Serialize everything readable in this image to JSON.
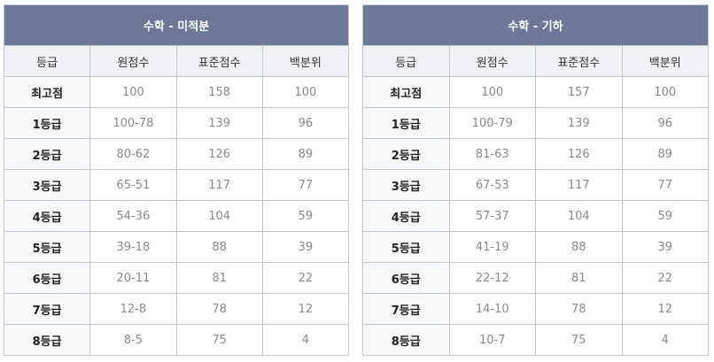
{
  "tables": [
    {
      "title": "수학 - 미적분",
      "headers": [
        "등급",
        "원점수",
        "표준점수",
        "백분위"
      ],
      "rows": [
        [
          "최고점",
          "100",
          "158",
          "100"
        ],
        [
          "1등급",
          "100-78",
          "139",
          "96"
        ],
        [
          "2등급",
          "80-62",
          "126",
          "89"
        ],
        [
          "3등급",
          "65-51",
          "117",
          "77"
        ],
        [
          "4등급",
          "54-36",
          "104",
          "59"
        ],
        [
          "5등급",
          "39-18",
          "88",
          "39"
        ],
        [
          "6등급",
          "20-11",
          "81",
          "22"
        ],
        [
          "7등급",
          "12-8",
          "78",
          "12"
        ],
        [
          "8등급",
          "8-5",
          "75",
          "4"
        ]
      ]
    },
    {
      "title": "수학 - 기하",
      "headers": [
        "등급",
        "원점수",
        "표준점수",
        "백분위"
      ],
      "rows": [
        [
          "최고점",
          "100",
          "157",
          "100"
        ],
        [
          "1등급",
          "100-79",
          "139",
          "96"
        ],
        [
          "2등급",
          "81-63",
          "126",
          "89"
        ],
        [
          "3등급",
          "67-53",
          "117",
          "77"
        ],
        [
          "4등급",
          "57-37",
          "104",
          "59"
        ],
        [
          "5등급",
          "41-19",
          "88",
          "39"
        ],
        [
          "6등급",
          "22-12",
          "81",
          "22"
        ],
        [
          "7등급",
          "14-10",
          "78",
          "12"
        ],
        [
          "8등급",
          "10-7",
          "75",
          "4"
        ]
      ]
    }
  ],
  "colors": {
    "title_bg": "#6b7896",
    "header_bg": "#eff1f6",
    "grade_bg": "#f7f8fa",
    "border": "#c4c7cf"
  }
}
